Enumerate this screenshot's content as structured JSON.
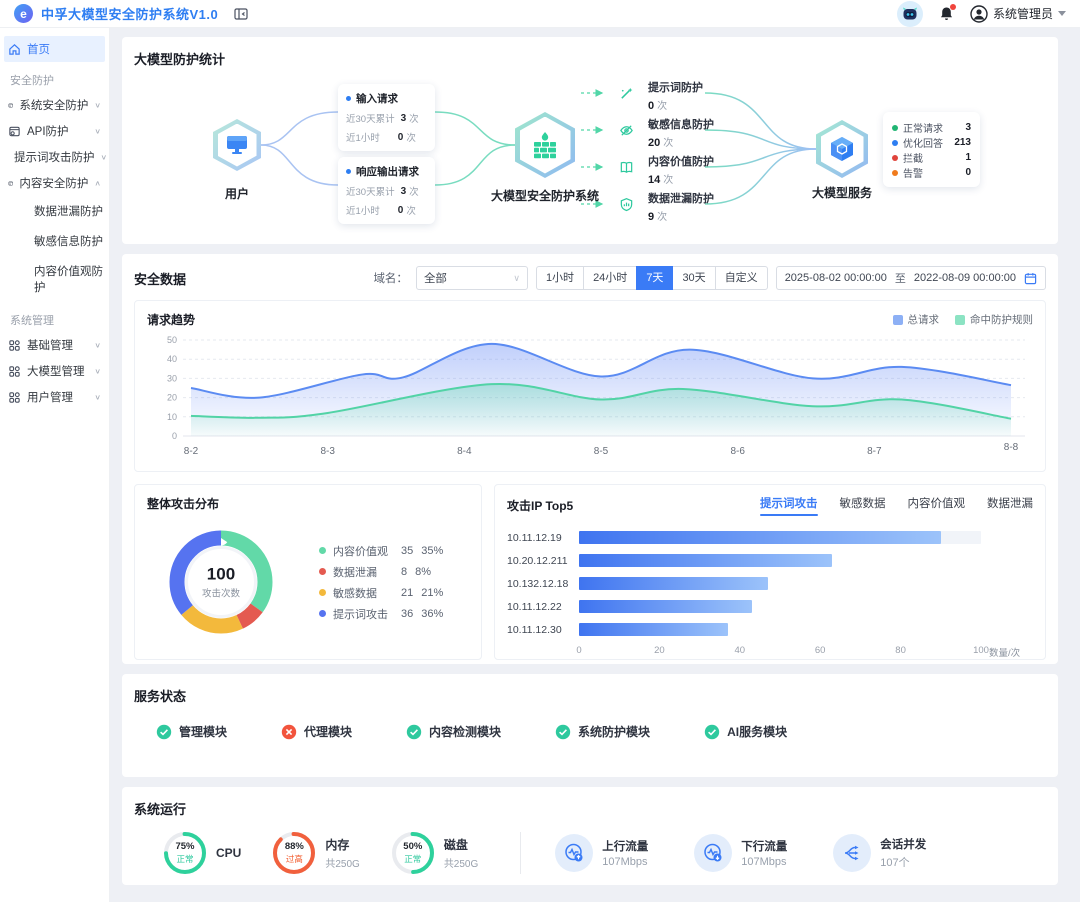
{
  "header": {
    "app_title": "中孚大模型安全防护系统V1.0",
    "user_name": "系统管理员"
  },
  "sidebar": {
    "home": {
      "label": "首页"
    },
    "section1": "安全防护",
    "items1": [
      {
        "label": "系统安全防护"
      },
      {
        "label": "API防护"
      },
      {
        "label": "提示词攻击防护"
      },
      {
        "label": "内容安全防护"
      }
    ],
    "subitems": [
      {
        "label": "数据泄漏防护"
      },
      {
        "label": "敏感信息防护"
      },
      {
        "label": "内容价值观防护"
      }
    ],
    "section2": "系统管理",
    "items2": [
      {
        "label": "基础管理"
      },
      {
        "label": "大模型管理"
      },
      {
        "label": "用户管理"
      }
    ]
  },
  "flow": {
    "section_title": "大模型防护统计",
    "user_node": "用户",
    "firewall_node": "大模型安全防护系统",
    "service_node": "大模型服务",
    "request_cards": [
      {
        "title": "输入请求",
        "rows": [
          {
            "label": "近30天累计",
            "value": "3",
            "unit": "次"
          },
          {
            "label": "近1小时",
            "value": "0",
            "unit": "次"
          }
        ]
      },
      {
        "title": "响应输出请求",
        "rows": [
          {
            "label": "近30天累计",
            "value": "3",
            "unit": "次"
          },
          {
            "label": "近1小时",
            "value": "0",
            "unit": "次"
          }
        ]
      }
    ],
    "protections": [
      {
        "name": "提示词防护",
        "count": "0",
        "unit": "次",
        "icon": "magic-wand-icon"
      },
      {
        "name": "敏感信息防护",
        "count": "20",
        "unit": "次",
        "icon": "eye-off-icon"
      },
      {
        "name": "内容价值防护",
        "count": "14",
        "unit": "次",
        "icon": "book-icon"
      },
      {
        "name": "数据泄漏防护",
        "count": "9",
        "unit": "次",
        "icon": "shield-icon"
      }
    ],
    "service_stats": [
      {
        "label": "正常请求",
        "value": "3",
        "color": "#21b573"
      },
      {
        "label": "优化回答",
        "value": "213",
        "color": "#2e7ef2"
      },
      {
        "label": "拦截",
        "value": "1",
        "color": "#e0443c"
      },
      {
        "label": "告警",
        "value": "0",
        "color": "#f07b1c"
      }
    ]
  },
  "security": {
    "section_title": "安全数据",
    "domain_label": "域名：",
    "domain_value": "全部",
    "range_buttons": [
      "1小时",
      "24小时",
      "7天",
      "30天",
      "自定义"
    ],
    "active_range": "7天",
    "date_start": "2025-08-02 00:00:00",
    "date_separator": "至",
    "date_end": "2022-08-09 00:00:00"
  },
  "chart_data": [
    {
      "type": "area",
      "title": "请求趋势",
      "x_labels": [
        "8-2",
        "8-3",
        "8-4",
        "8-5",
        "8-6",
        "8-7",
        "8-8"
      ],
      "ylim": [
        0,
        50
      ],
      "y_ticks": [
        0,
        10,
        20,
        30,
        40,
        50
      ],
      "grid": true,
      "legend_position": "top-right",
      "series": [
        {
          "name": "总请求",
          "color": "#5b8bf2",
          "x": [
            0,
            0.5,
            1.25,
            1.55,
            2.2,
            3.0,
            3.65,
            4.55,
            5.2,
            6
          ],
          "values": [
            25,
            20,
            32,
            30.5,
            48,
            31,
            45,
            30,
            36,
            26.5
          ]
        },
        {
          "name": "命中防护规则",
          "color": "#52d3a6",
          "x": [
            0,
            0.5,
            1,
            2.2,
            3.0,
            3.6,
            4.55,
            5.2,
            6
          ],
          "values": [
            10.5,
            9.5,
            12,
            27,
            19,
            24.5,
            15.5,
            19,
            9
          ]
        }
      ]
    },
    {
      "type": "pie",
      "title": "整体攻击分布",
      "center_value": "100",
      "center_label": "攻击次数",
      "slices": [
        {
          "name": "内容价值观",
          "value": 35,
          "percent": "35%",
          "color": "#62d9a8"
        },
        {
          "name": "数据泄漏",
          "value": 8,
          "percent": "8%",
          "color": "#e45a50"
        },
        {
          "name": "敏感数据",
          "value": 21,
          "percent": "21%",
          "color": "#f3b93c"
        },
        {
          "name": "提示词攻击",
          "value": 36,
          "percent": "36%",
          "color": "#5673f0"
        }
      ]
    },
    {
      "type": "bar",
      "title": "攻击IP Top5",
      "tabs": [
        "提示词攻击",
        "敏感数据",
        "内容价值观",
        "数据泄漏"
      ],
      "active_tab": "提示词攻击",
      "categories": [
        "10.11.12.19",
        "10.20.12.211",
        "10.132.12.18",
        "10.11.12.22",
        "10.11.12.30"
      ],
      "values": [
        90,
        63,
        47,
        43,
        37
      ],
      "xlim": [
        0,
        100
      ],
      "x_ticks": [
        0,
        20,
        40,
        60,
        80,
        100
      ],
      "unit": "数量/次"
    }
  ],
  "services": {
    "section_title": "服务状态",
    "items": [
      {
        "name": "管理模块",
        "status": "ok"
      },
      {
        "name": "代理模块",
        "status": "error"
      },
      {
        "name": "内容检测模块",
        "status": "ok"
      },
      {
        "name": "系统防护模块",
        "status": "ok"
      },
      {
        "name": "AI服务模块",
        "status": "ok"
      }
    ]
  },
  "system": {
    "section_title": "系统运行",
    "gauges": [
      {
        "name": "CPU",
        "percent": 75,
        "percent_label": "75%",
        "status": "正常",
        "status_type": "normal",
        "sub": ""
      },
      {
        "name": "内存",
        "percent": 88,
        "percent_label": "88%",
        "status": "过高",
        "status_type": "high",
        "sub": "共250G"
      },
      {
        "name": "磁盘",
        "percent": 50,
        "percent_label": "50%",
        "status": "正常",
        "status_type": "normal",
        "sub": "共250G"
      }
    ],
    "metrics": [
      {
        "name": "上行流量",
        "value": "107Mbps",
        "icon": "upload-traffic-icon"
      },
      {
        "name": "下行流量",
        "value": "107Mbps",
        "icon": "download-traffic-icon"
      },
      {
        "name": "会话并发",
        "value": "107个",
        "icon": "session-concurrency-icon"
      }
    ]
  },
  "colors": {
    "primary": "#3a7bf6",
    "title_blue": "#2e7ef2",
    "teal": "#2ec99e",
    "alert_red": "#f2543d",
    "page_bg": "#eef0f5"
  }
}
